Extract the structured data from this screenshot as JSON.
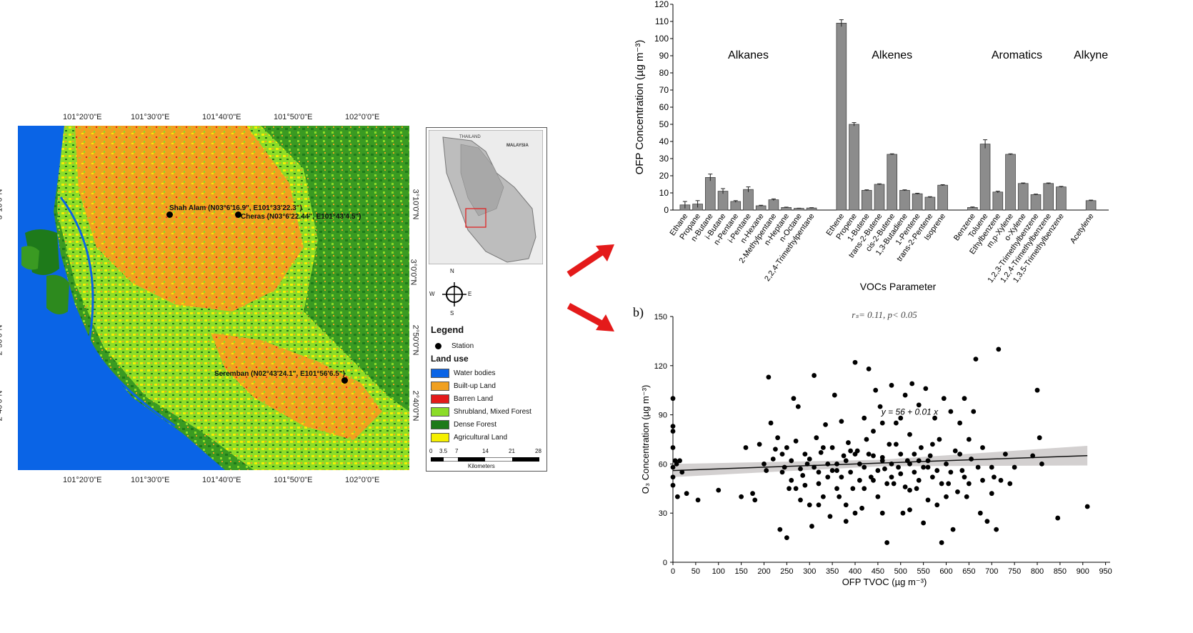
{
  "map": {
    "lon_ticks": [
      "101°20'0\"E",
      "101°30'0\"E",
      "101°40'0\"E",
      "101°50'0\"E",
      "102°0'0\"E"
    ],
    "lat_ticks": [
      "3°10'0\"N",
      "3°0'0\"N",
      "2°50'0\"N",
      "2°40'0\"N"
    ],
    "stations": [
      {
        "label": "Shah Alam (N03°6'16.9\", E101°33'22.3\")"
      },
      {
        "label": "Cheras (N03°6'22.44\", E101°43'4.5\")"
      },
      {
        "label": "Seremban (N02°43'24.1\", E101°56'6.5\")"
      }
    ],
    "inset": {
      "country": "MALAYSIA",
      "neighbor": "THAILAND"
    },
    "compass": {
      "n": "N",
      "s": "S",
      "e": "E",
      "w": "W"
    },
    "legend": {
      "title": "Legend",
      "station_label": "Station",
      "land_use_title": "Land use",
      "items": [
        {
          "label": "Water bodies",
          "color": "#0a64e6"
        },
        {
          "label": "Built-up Land",
          "color": "#f0a020"
        },
        {
          "label": "Barren Land",
          "color": "#e41a1a"
        },
        {
          "label": "Shrubland, Mixed Forest",
          "color": "#8cdc28"
        },
        {
          "label": "Dense Forest",
          "color": "#1e7a1a"
        },
        {
          "label": "Agricultural Land",
          "color": "#f5f000"
        }
      ],
      "scale_ticks": [
        "0",
        "3.5",
        "7",
        "14",
        "21",
        "28"
      ],
      "scale_unit": "Kilometers"
    }
  },
  "chart_data": [
    {
      "type": "bar",
      "title": "",
      "xlabel": "VOCs Parameter",
      "ylabel": "OFP Concentration  (µg m⁻³)",
      "ylim": [
        0,
        120
      ],
      "yticks": [
        0,
        10,
        20,
        30,
        40,
        50,
        60,
        70,
        80,
        90,
        100,
        110,
        120
      ],
      "bar_color": "#8c8c8c",
      "groups": [
        {
          "name": "Alkanes",
          "categories": [
            "Ethane",
            "Propane",
            "n-Butane",
            "i-Butane",
            "n-Pentane",
            "i-Pentane",
            "n-Hexane",
            "2-Methylpentane",
            "n-Heptane",
            "n-Octane",
            "2,2,4-Trimethylpentane"
          ],
          "values": [
            3,
            3.5,
            19,
            11,
            5,
            12,
            2.5,
            6,
            1.5,
            1,
            1.2
          ],
          "errors": [
            2,
            2,
            2,
            1.5,
            0.5,
            1.5,
            0.3,
            0.5,
            0.2,
            0.1,
            0.2
          ]
        },
        {
          "name": "Alkenes",
          "categories": [
            "Ethene",
            "Propene",
            "1-Butene",
            "trans-2-Butene",
            "cis-2-Butene",
            "1,3-Butadiene",
            "1-Pentene",
            "trans-2-Pentene",
            "Isoprene"
          ],
          "values": [
            109,
            50,
            11.5,
            15,
            32.5,
            11.5,
            9.5,
            7.5,
            14.5
          ],
          "errors": [
            2,
            1,
            0.3,
            0.3,
            0.3,
            0.3,
            0.3,
            0.3,
            0.3
          ]
        },
        {
          "name": "Aromatics",
          "categories": [
            "Benzene",
            "Toluene",
            "Ethylbenzene",
            "m,p-Xylene",
            "o-Xylene",
            "1,2,3-Trimethylbenzene",
            "1,2,4-Trimethylbenzene",
            "1,3,5-Trimethylbenzene"
          ],
          "values": [
            1.5,
            38.5,
            10.5,
            32.5,
            15.5,
            9,
            15.5,
            13.5
          ],
          "errors": [
            0.3,
            2.5,
            0.5,
            0.3,
            0.3,
            0.3,
            0.3,
            0.3
          ]
        },
        {
          "name": "Alkyne",
          "categories": [
            "Acetylene"
          ],
          "values": [
            5.5
          ],
          "errors": [
            0.3
          ]
        }
      ]
    },
    {
      "type": "scatter",
      "panel_label": "b)",
      "annotation": "rₛ= 0.11, p< 0.05",
      "equation": "y = 56 + 0.01 x",
      "xlabel": "OFP TVOC  (µg m⁻³)",
      "ylabel": "O₃ Concentration  (µg m⁻³)",
      "xlim": [
        0,
        960
      ],
      "ylim": [
        0,
        150
      ],
      "xticks": [
        0,
        50,
        100,
        150,
        200,
        250,
        300,
        350,
        400,
        450,
        500,
        550,
        600,
        650,
        700,
        750,
        800,
        850,
        900,
        950
      ],
      "yticks": [
        0,
        30,
        60,
        90,
        120,
        150
      ],
      "fit": {
        "intercept": 56,
        "slope": 0.01,
        "x_range": [
          0,
          910
        ],
        "band_halfwidth_low": 4,
        "band_halfwidth_high": 6
      },
      "points": [
        [
          0,
          100
        ],
        [
          0,
          83
        ],
        [
          0,
          80
        ],
        [
          0,
          70
        ],
        [
          0,
          58
        ],
        [
          0,
          52
        ],
        [
          0,
          47
        ],
        [
          5,
          62
        ],
        [
          8,
          60
        ],
        [
          10,
          40
        ],
        [
          15,
          62
        ],
        [
          20,
          55
        ],
        [
          30,
          42
        ],
        [
          55,
          38
        ],
        [
          100,
          44
        ],
        [
          150,
          40
        ],
        [
          160,
          70
        ],
        [
          175,
          42
        ],
        [
          180,
          38
        ],
        [
          190,
          72
        ],
        [
          200,
          60
        ],
        [
          205,
          56
        ],
        [
          210,
          113
        ],
        [
          215,
          85
        ],
        [
          220,
          63
        ],
        [
          225,
          69
        ],
        [
          230,
          76
        ],
        [
          235,
          20
        ],
        [
          240,
          55
        ],
        [
          245,
          58
        ],
        [
          250,
          15
        ],
        [
          255,
          45
        ],
        [
          260,
          62
        ],
        [
          265,
          100
        ],
        [
          270,
          74
        ],
        [
          275,
          95
        ],
        [
          280,
          38
        ],
        [
          285,
          53
        ],
        [
          290,
          47
        ],
        [
          295,
          60
        ],
        [
          300,
          35
        ],
        [
          305,
          22
        ],
        [
          310,
          114
        ],
        [
          315,
          76
        ],
        [
          320,
          55
        ],
        [
          325,
          67
        ],
        [
          330,
          40
        ],
        [
          335,
          84
        ],
        [
          340,
          60
        ],
        [
          345,
          28
        ],
        [
          350,
          70
        ],
        [
          355,
          102
        ],
        [
          360,
          56
        ],
        [
          365,
          40
        ],
        [
          370,
          86
        ],
        [
          375,
          65
        ],
        [
          380,
          25
        ],
        [
          385,
          73
        ],
        [
          390,
          55
        ],
        [
          395,
          45
        ],
        [
          400,
          122
        ],
        [
          405,
          68
        ],
        [
          410,
          60
        ],
        [
          415,
          33
        ],
        [
          420,
          88
        ],
        [
          425,
          75
        ],
        [
          430,
          118
        ],
        [
          435,
          52
        ],
        [
          440,
          65
        ],
        [
          445,
          105
        ],
        [
          450,
          40
        ],
        [
          455,
          95
        ],
        [
          460,
          62
        ],
        [
          465,
          57
        ],
        [
          470,
          12
        ],
        [
          475,
          72
        ],
        [
          480,
          108
        ],
        [
          485,
          48
        ],
        [
          490,
          85
        ],
        [
          495,
          58
        ],
        [
          500,
          66
        ],
        [
          505,
          30
        ],
        [
          510,
          102
        ],
        [
          515,
          62
        ],
        [
          520,
          78
        ],
        [
          525,
          109
        ],
        [
          530,
          55
        ],
        [
          535,
          45
        ],
        [
          540,
          96
        ],
        [
          545,
          70
        ],
        [
          550,
          24
        ],
        [
          555,
          106
        ],
        [
          560,
          62
        ],
        [
          565,
          65
        ],
        [
          570,
          52
        ],
        [
          575,
          88
        ],
        [
          580,
          35
        ],
        [
          585,
          75
        ],
        [
          590,
          12
        ],
        [
          595,
          100
        ],
        [
          600,
          60
        ],
        [
          605,
          48
        ],
        [
          610,
          92
        ],
        [
          615,
          20
        ],
        [
          620,
          68
        ],
        [
          625,
          43
        ],
        [
          630,
          85
        ],
        [
          635,
          56
        ],
        [
          640,
          100
        ],
        [
          645,
          40
        ],
        [
          650,
          75
        ],
        [
          655,
          63
        ],
        [
          660,
          92
        ],
        [
          665,
          124
        ],
        [
          670,
          58
        ],
        [
          675,
          30
        ],
        [
          680,
          70
        ],
        [
          690,
          25
        ],
        [
          700,
          42
        ],
        [
          705,
          52
        ],
        [
          710,
          20
        ],
        [
          715,
          130
        ],
        [
          720,
          50
        ],
        [
          730,
          66
        ],
        [
          740,
          48
        ],
        [
          750,
          58
        ],
        [
          790,
          65
        ],
        [
          800,
          105
        ],
        [
          805,
          76
        ],
        [
          810,
          60
        ],
        [
          845,
          27
        ],
        [
          910,
          34
        ],
        [
          360,
          60
        ],
        [
          380,
          62
        ],
        [
          400,
          66
        ],
        [
          420,
          58
        ],
        [
          440,
          50
        ],
        [
          460,
          64
        ],
        [
          480,
          60
        ],
        [
          500,
          54
        ],
        [
          520,
          60
        ],
        [
          540,
          62
        ],
        [
          560,
          58
        ],
        [
          580,
          56
        ],
        [
          440,
          80
        ],
        [
          460,
          85
        ],
        [
          480,
          52
        ],
        [
          500,
          88
        ],
        [
          520,
          44
        ],
        [
          540,
          50
        ],
        [
          360,
          45
        ],
        [
          340,
          52
        ],
        [
          320,
          48
        ],
        [
          300,
          63
        ],
        [
          280,
          57
        ],
        [
          260,
          50
        ],
        [
          420,
          45
        ],
        [
          430,
          66
        ],
        [
          450,
          56
        ],
        [
          470,
          48
        ],
        [
          490,
          72
        ],
        [
          510,
          46
        ],
        [
          530,
          66
        ],
        [
          550,
          58
        ],
        [
          570,
          72
        ],
        [
          590,
          48
        ],
        [
          610,
          55
        ],
        [
          630,
          66
        ],
        [
          650,
          48
        ],
        [
          330,
          70
        ],
        [
          350,
          56
        ],
        [
          370,
          52
        ],
        [
          390,
          68
        ],
        [
          410,
          50
        ],
        [
          240,
          66
        ],
        [
          250,
          70
        ],
        [
          270,
          45
        ],
        [
          290,
          66
        ],
        [
          310,
          58
        ],
        [
          320,
          35
        ],
        [
          380,
          35
        ],
        [
          400,
          30
        ],
        [
          460,
          30
        ],
        [
          520,
          32
        ],
        [
          560,
          38
        ],
        [
          600,
          40
        ],
        [
          640,
          52
        ],
        [
          680,
          50
        ],
        [
          700,
          58
        ]
      ]
    }
  ]
}
